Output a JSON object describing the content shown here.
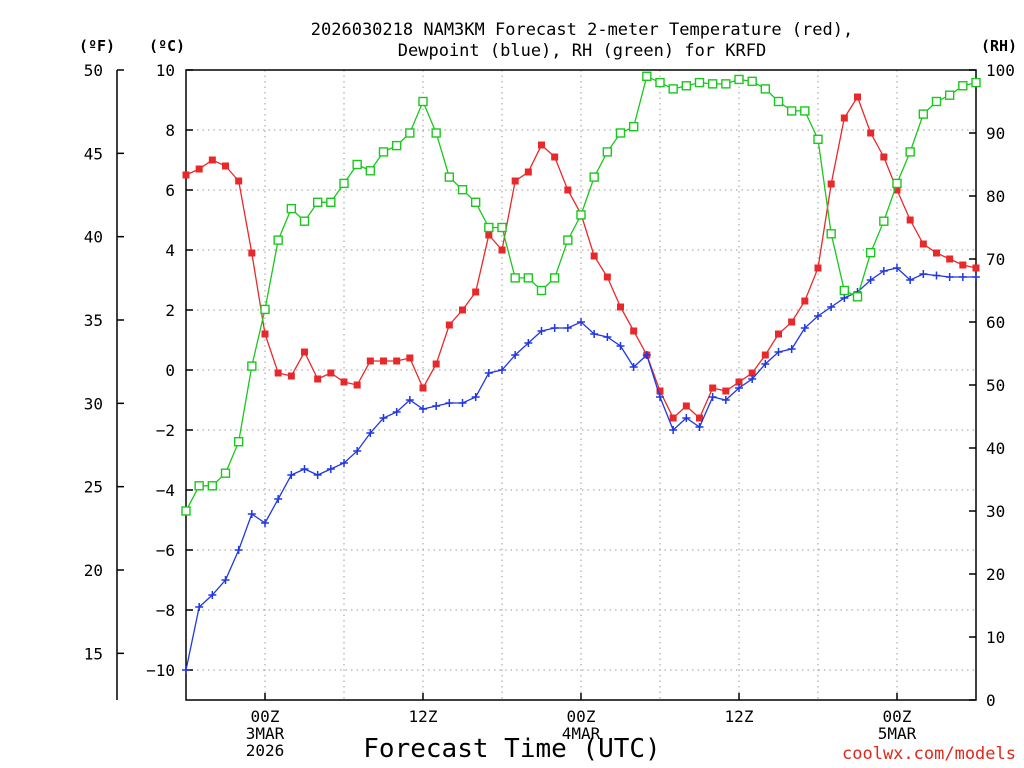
{
  "chart_data": {
    "type": "line",
    "title": [
      "2026030218 NAM3KM Forecast 2-meter Temperature (red),",
      "Dewpoint (blue), RH (green) for KRFD"
    ],
    "xlabel": "Forecast Time (UTC)",
    "credit": "coolwx.com/models",
    "x_hours_range": [
      0,
      60
    ],
    "x_ticks": [
      {
        "hour": 6,
        "lines": [
          "00Z",
          "3MAR",
          "2026"
        ]
      },
      {
        "hour": 18,
        "lines": [
          "12Z"
        ]
      },
      {
        "hour": 30,
        "lines": [
          "00Z",
          "4MAR"
        ]
      },
      {
        "hour": 42,
        "lines": [
          "12Z"
        ]
      },
      {
        "hour": 54,
        "lines": [
          "00Z",
          "5MAR"
        ]
      }
    ],
    "axes": {
      "celsius": {
        "label": "(ºC)",
        "ylim": [
          -11,
          10
        ],
        "ticks": [
          10,
          8,
          6,
          4,
          2,
          0,
          -2,
          -4,
          -6,
          -8,
          -10
        ],
        "tick_labels": [
          "10",
          "8",
          "6",
          "4",
          "2",
          "0",
          "−2",
          "−4",
          "−6",
          "−8",
          "−10"
        ]
      },
      "fahrenheit": {
        "label": "(ºF)",
        "ticks": [
          50,
          45,
          40,
          35,
          30,
          25,
          20,
          15
        ]
      },
      "rh": {
        "label": "(RH)",
        "ylim": [
          0,
          100
        ],
        "ticks": [
          100,
          90,
          80,
          70,
          60,
          50,
          40,
          30,
          20,
          10,
          0
        ]
      }
    },
    "series": [
      {
        "name": "Temperature",
        "unit": "C",
        "color": "#e8292b",
        "marker": "filled-square",
        "x": [
          0,
          1,
          2,
          3,
          4,
          5,
          6,
          7,
          8,
          9,
          10,
          11,
          12,
          13,
          14,
          15,
          16,
          17,
          18,
          19,
          20,
          21,
          22,
          23,
          24,
          25,
          26,
          27,
          28,
          29,
          30,
          31,
          32,
          33,
          34,
          35,
          36,
          37,
          38,
          39,
          40,
          41,
          42,
          43,
          44,
          45,
          46,
          47,
          48,
          49,
          50,
          51,
          52,
          53,
          54,
          55,
          56,
          57,
          58,
          59,
          60
        ],
        "values": [
          6.5,
          6.7,
          7.0,
          6.8,
          6.3,
          3.9,
          1.2,
          -0.1,
          -0.2,
          0.6,
          -0.3,
          -0.1,
          -0.4,
          -0.5,
          0.3,
          0.3,
          0.3,
          0.4,
          -0.6,
          0.2,
          1.5,
          2.0,
          2.6,
          4.5,
          4.0,
          6.3,
          6.6,
          7.5,
          7.1,
          6.0,
          5.2,
          3.8,
          3.1,
          2.1,
          1.3,
          0.5,
          -0.7,
          -1.6,
          -1.2,
          -1.6,
          -0.6,
          -0.7,
          -0.4,
          -0.1,
          0.5,
          1.2,
          1.6,
          2.3,
          3.4,
          6.2,
          8.4,
          9.1,
          7.9,
          7.1,
          6.0,
          5.0,
          4.2,
          3.9,
          3.7,
          3.5,
          3.4
        ]
      },
      {
        "name": "Dewpoint",
        "unit": "C",
        "color": "#2138e0",
        "marker": "plus",
        "x": [
          0,
          1,
          2,
          3,
          4,
          5,
          6,
          7,
          8,
          9,
          10,
          11,
          12,
          13,
          14,
          15,
          16,
          17,
          18,
          19,
          20,
          21,
          22,
          23,
          24,
          25,
          26,
          27,
          28,
          29,
          30,
          31,
          32,
          33,
          34,
          35,
          36,
          37,
          38,
          39,
          40,
          41,
          42,
          43,
          44,
          45,
          46,
          47,
          48,
          49,
          50,
          51,
          52,
          53,
          54,
          55,
          56,
          57,
          58,
          59,
          60
        ],
        "values": [
          -10.0,
          -7.9,
          -7.5,
          -7.0,
          -6.0,
          -4.8,
          -5.1,
          -4.3,
          -3.5,
          -3.3,
          -3.5,
          -3.3,
          -3.1,
          -2.7,
          -2.1,
          -1.6,
          -1.4,
          -1.0,
          -1.3,
          -1.2,
          -1.1,
          -1.1,
          -0.9,
          -0.1,
          0.0,
          0.5,
          0.9,
          1.3,
          1.4,
          1.4,
          1.6,
          1.2,
          1.1,
          0.8,
          0.1,
          0.5,
          -0.9,
          -2.0,
          -1.6,
          -1.9,
          -0.9,
          -1.0,
          -0.6,
          -0.3,
          0.2,
          0.6,
          0.7,
          1.4,
          1.8,
          2.1,
          2.4,
          2.6,
          3.0,
          3.3,
          3.4,
          3.0,
          3.2,
          3.15,
          3.1,
          3.1,
          3.1
        ]
      },
      {
        "name": "Relative Humidity",
        "unit": "%",
        "color": "#19c81c",
        "marker": "open-square",
        "x": [
          0,
          1,
          2,
          3,
          4,
          5,
          6,
          7,
          8,
          9,
          10,
          11,
          12,
          13,
          14,
          15,
          16,
          17,
          18,
          19,
          20,
          21,
          22,
          23,
          24,
          25,
          26,
          27,
          28,
          29,
          30,
          31,
          32,
          33,
          34,
          35,
          36,
          37,
          38,
          39,
          40,
          41,
          42,
          43,
          44,
          45,
          46,
          47,
          48,
          49,
          50,
          51,
          52,
          53,
          54,
          55,
          56,
          57,
          58,
          59,
          60
        ],
        "values": [
          30,
          34,
          34,
          36,
          41,
          53,
          62,
          73,
          78,
          76,
          79,
          79,
          82,
          85,
          84,
          87,
          88,
          90,
          95,
          90,
          83,
          81,
          79,
          75,
          75,
          67,
          67,
          65,
          67,
          73,
          77,
          83,
          87,
          90,
          91,
          99,
          98,
          97,
          97.5,
          98,
          97.8,
          97.8,
          98.5,
          98.2,
          97,
          95,
          93.5,
          93.5,
          89,
          74,
          65,
          64,
          71,
          76,
          82,
          87,
          93,
          95,
          96,
          97.5,
          98
        ]
      }
    ]
  }
}
